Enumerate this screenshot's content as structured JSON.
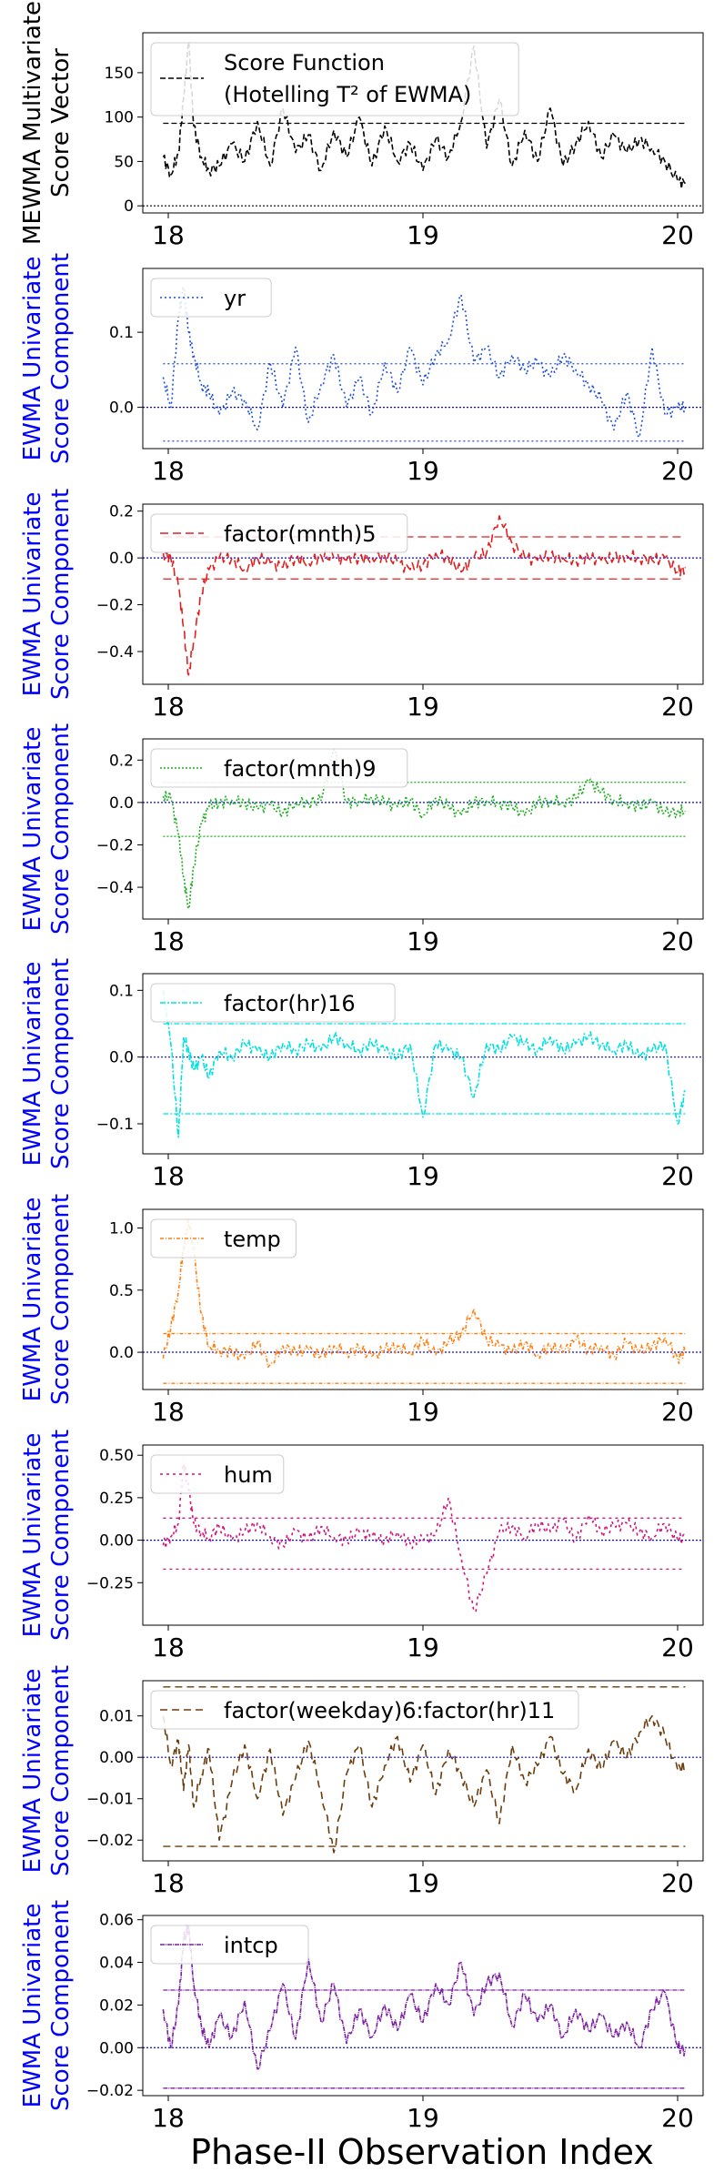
{
  "figure": {
    "xlabel": "Phase-II Observation Index"
  },
  "chart_data": [
    {
      "type": "line",
      "ylabel": [
        "MEWMA Multivariate",
        "Score Vector"
      ],
      "ylabel_color": "#000000",
      "legend": [
        "Score Function",
        "(Hotelling T² of EWMA)"
      ],
      "legend_placement": "top-left",
      "color": "#000000",
      "dash": "6,3",
      "ylim": [
        -8,
        195
      ],
      "yticks": [
        0,
        50,
        100,
        150
      ],
      "ytick_labels": [
        "0",
        "50",
        "100",
        "150"
      ],
      "xlim": [
        17.9,
        20.1
      ],
      "xticks": [
        18,
        19,
        20
      ],
      "xtick_labels": [
        "18",
        "19",
        "20"
      ],
      "limits": [
        93
      ],
      "center": 0,
      "center_color": "#000000",
      "x": [
        17.98,
        18.01,
        18.04,
        18.06,
        18.08,
        18.1,
        18.13,
        18.16,
        18.2,
        18.25,
        18.3,
        18.35,
        18.4,
        18.45,
        18.5,
        18.55,
        18.6,
        18.65,
        18.7,
        18.75,
        18.8,
        18.85,
        18.9,
        18.95,
        19.0,
        19.05,
        19.1,
        19.15,
        19.2,
        19.25,
        19.3,
        19.35,
        19.4,
        19.45,
        19.5,
        19.55,
        19.6,
        19.65,
        19.7,
        19.75,
        19.8,
        19.85,
        19.9,
        19.95,
        20.0,
        20.03
      ],
      "y": [
        55,
        35,
        60,
        120,
        185,
        90,
        55,
        40,
        45,
        70,
        50,
        95,
        45,
        110,
        60,
        80,
        40,
        85,
        55,
        100,
        45,
        90,
        50,
        70,
        40,
        75,
        55,
        95,
        180,
        65,
        120,
        45,
        85,
        50,
        110,
        45,
        70,
        95,
        55,
        80,
        60,
        75,
        65,
        50,
        28,
        25
      ]
    },
    {
      "type": "line",
      "ylabel": [
        "EWMA Univariate",
        "Score Component"
      ],
      "ylabel_color": "#0000ff",
      "legend": [
        "yr"
      ],
      "legend_placement": "top-left",
      "color": "#1f4fd8",
      "dash": "2,3",
      "ylim": [
        -0.055,
        0.185
      ],
      "yticks": [
        0.0,
        0.1
      ],
      "ytick_labels": [
        "0.0",
        "0.1"
      ],
      "xlim": [
        17.9,
        20.1
      ],
      "xticks": [
        18,
        19,
        20
      ],
      "xtick_labels": [
        "18",
        "19",
        "20"
      ],
      "limits": [
        0.058,
        -0.045
      ],
      "center": 0,
      "center_color": "#0000ff",
      "x": [
        17.98,
        18.01,
        18.04,
        18.06,
        18.08,
        18.1,
        18.13,
        18.16,
        18.2,
        18.25,
        18.3,
        18.35,
        18.4,
        18.45,
        18.5,
        18.55,
        18.6,
        18.65,
        18.7,
        18.75,
        18.8,
        18.85,
        18.9,
        18.95,
        19.0,
        19.05,
        19.1,
        19.15,
        19.2,
        19.25,
        19.3,
        19.35,
        19.4,
        19.45,
        19.5,
        19.55,
        19.6,
        19.65,
        19.7,
        19.75,
        19.8,
        19.85,
        19.9,
        19.95,
        20.0,
        20.03
      ],
      "y": [
        0.04,
        0.0,
        0.12,
        0.16,
        0.1,
        0.07,
        0.03,
        0.02,
        -0.01,
        0.02,
        0.01,
        -0.03,
        0.06,
        0.0,
        0.08,
        -0.02,
        0.03,
        0.07,
        0.0,
        0.04,
        -0.01,
        0.06,
        0.02,
        0.08,
        0.03,
        0.07,
        0.09,
        0.15,
        0.06,
        0.08,
        0.04,
        0.07,
        0.05,
        0.06,
        0.04,
        0.07,
        0.05,
        0.03,
        0.01,
        -0.03,
        0.02,
        -0.04,
        0.08,
        -0.01,
        0.0,
        0.0
      ]
    },
    {
      "type": "line",
      "ylabel": [
        "EWMA Univariate",
        "Score Component"
      ],
      "ylabel_color": "#0000ff",
      "legend": [
        "factor(mnth)5"
      ],
      "legend_placement": "top-left",
      "color": "#e02020",
      "dash": "9,5",
      "ylim": [
        -0.54,
        0.23
      ],
      "yticks": [
        -0.4,
        -0.2,
        0.0,
        0.2
      ],
      "ytick_labels": [
        "−0.4",
        "−0.2",
        "0.0",
        "0.2"
      ],
      "xlim": [
        17.9,
        20.1
      ],
      "xticks": [
        18,
        19,
        20
      ],
      "xtick_labels": [
        "18",
        "19",
        "20"
      ],
      "limits": [
        0.09,
        -0.09
      ],
      "center": 0,
      "center_color": "#0000ff",
      "x": [
        17.98,
        18.01,
        18.04,
        18.06,
        18.08,
        18.1,
        18.13,
        18.16,
        18.2,
        18.25,
        18.3,
        18.35,
        18.4,
        18.45,
        18.5,
        18.55,
        18.6,
        18.65,
        18.7,
        18.75,
        18.8,
        18.85,
        18.9,
        18.95,
        19.0,
        19.05,
        19.1,
        19.15,
        19.2,
        19.25,
        19.3,
        19.35,
        19.4,
        19.45,
        19.5,
        19.55,
        19.6,
        19.65,
        19.7,
        19.75,
        19.8,
        19.85,
        19.9,
        19.95,
        20.0,
        20.03
      ],
      "y": [
        0.02,
        0.0,
        -0.12,
        -0.3,
        -0.5,
        -0.35,
        -0.15,
        -0.05,
        0.0,
        0.0,
        -0.05,
        0.0,
        -0.02,
        -0.04,
        0.0,
        -0.02,
        0.01,
        0.0,
        -0.01,
        0.0,
        0.0,
        0.01,
        -0.02,
        -0.05,
        -0.03,
        0.02,
        0.0,
        -0.06,
        0.0,
        0.02,
        0.18,
        0.06,
        0.0,
        -0.01,
        0.01,
        0.0,
        -0.01,
        0.0,
        -0.01,
        0.0,
        0.01,
        0.0,
        -0.01,
        0.0,
        -0.06,
        -0.04
      ]
    },
    {
      "type": "line",
      "ylabel": [
        "EWMA Univariate",
        "Score Component"
      ],
      "ylabel_color": "#0000ff",
      "legend": [
        "factor(mnth)9"
      ],
      "legend_placement": "top-left",
      "color": "#1fae1f",
      "dash": "2,2",
      "ylim": [
        -0.55,
        0.3
      ],
      "yticks": [
        -0.4,
        -0.2,
        0.0,
        0.2
      ],
      "ytick_labels": [
        "−0.4",
        "−0.2",
        "0.0",
        "0.2"
      ],
      "xlim": [
        17.9,
        20.1
      ],
      "xticks": [
        18,
        19,
        20
      ],
      "xtick_labels": [
        "18",
        "19",
        "20"
      ],
      "limits": [
        0.095,
        -0.16
      ],
      "center": 0,
      "center_color": "#0000ff",
      "x": [
        17.98,
        18.01,
        18.04,
        18.06,
        18.08,
        18.1,
        18.13,
        18.16,
        18.2,
        18.25,
        18.3,
        18.35,
        18.4,
        18.45,
        18.5,
        18.55,
        18.6,
        18.65,
        18.7,
        18.75,
        18.8,
        18.85,
        18.9,
        18.95,
        19.0,
        19.05,
        19.1,
        19.15,
        19.2,
        19.25,
        19.3,
        19.35,
        19.4,
        19.45,
        19.5,
        19.55,
        19.6,
        19.65,
        19.7,
        19.75,
        19.8,
        19.85,
        19.9,
        19.95,
        20.0,
        20.03
      ],
      "y": [
        0.03,
        0.02,
        -0.15,
        -0.35,
        -0.5,
        -0.3,
        -0.1,
        -0.02,
        0.0,
        0.01,
        0.0,
        -0.03,
        -0.01,
        -0.05,
        0.0,
        0.0,
        0.01,
        0.25,
        0.0,
        0.01,
        0.02,
        0.0,
        -0.02,
        0.01,
        -0.06,
        0.02,
        -0.02,
        -0.06,
        0.0,
        0.01,
        0.0,
        -0.02,
        -0.06,
        0.0,
        0.01,
        0.0,
        0.02,
        0.1,
        0.05,
        0.01,
        0.0,
        -0.02,
        0.0,
        -0.05,
        -0.04,
        -0.04
      ]
    },
    {
      "type": "line",
      "ylabel": [
        "EWMA Univariate",
        "Score Component"
      ],
      "ylabel_color": "#0000ff",
      "legend": [
        "factor(hr)16"
      ],
      "legend_placement": "top-left",
      "color": "#00e0e0",
      "dash": "6,2,2,2",
      "ylim": [
        -0.145,
        0.125
      ],
      "yticks": [
        -0.1,
        0.0,
        0.1
      ],
      "ytick_labels": [
        "−0.1",
        "0.0",
        "0.1"
      ],
      "xlim": [
        17.9,
        20.1
      ],
      "xticks": [
        18,
        19,
        20
      ],
      "xtick_labels": [
        "18",
        "19",
        "20"
      ],
      "limits": [
        0.05,
        -0.085
      ],
      "center": 0,
      "center_color": "#0000ff",
      "x": [
        17.98,
        18.01,
        18.04,
        18.06,
        18.08,
        18.1,
        18.13,
        18.16,
        18.2,
        18.25,
        18.3,
        18.35,
        18.4,
        18.45,
        18.5,
        18.55,
        18.6,
        18.65,
        18.7,
        18.75,
        18.8,
        18.85,
        18.9,
        18.95,
        19.0,
        19.05,
        19.1,
        19.15,
        19.2,
        19.25,
        19.3,
        19.35,
        19.4,
        19.45,
        19.5,
        19.55,
        19.6,
        19.65,
        19.7,
        19.75,
        19.8,
        19.85,
        19.9,
        19.95,
        20.0,
        20.03
      ],
      "y": [
        0.1,
        0.02,
        -0.12,
        0.03,
        0.01,
        -0.02,
        0.0,
        -0.03,
        0.01,
        0.0,
        0.02,
        0.01,
        0.0,
        0.02,
        0.01,
        0.02,
        0.01,
        0.03,
        0.02,
        0.01,
        0.02,
        0.01,
        0.0,
        0.02,
        -0.09,
        0.02,
        0.01,
        0.0,
        -0.06,
        0.02,
        0.01,
        0.03,
        0.02,
        0.01,
        0.03,
        0.01,
        0.02,
        0.03,
        0.02,
        0.01,
        0.02,
        0.0,
        0.01,
        0.02,
        -0.1,
        -0.05
      ]
    },
    {
      "type": "line",
      "ylabel": [
        "EWMA Univariate",
        "Score Component"
      ],
      "ylabel_color": "#0000ff",
      "legend": [
        "temp"
      ],
      "legend_placement": "top-left",
      "color": "#ff7f0e",
      "dash": "4,2,1,2",
      "ylim": [
        -0.3,
        1.15
      ],
      "yticks": [
        0.0,
        0.5,
        1.0
      ],
      "ytick_labels": [
        "0.0",
        "0.5",
        "1.0"
      ],
      "xlim": [
        17.9,
        20.1
      ],
      "xticks": [
        18,
        19,
        20
      ],
      "xtick_labels": [
        "18",
        "19",
        "20"
      ],
      "limits": [
        0.15,
        -0.25
      ],
      "center": 0,
      "center_color": "#0000ff",
      "x": [
        17.98,
        18.01,
        18.04,
        18.06,
        18.08,
        18.1,
        18.13,
        18.16,
        18.2,
        18.25,
        18.3,
        18.35,
        18.4,
        18.45,
        18.5,
        18.55,
        18.6,
        18.65,
        18.7,
        18.75,
        18.8,
        18.85,
        18.9,
        18.95,
        19.0,
        19.05,
        19.1,
        19.15,
        19.2,
        19.25,
        19.3,
        19.35,
        19.4,
        19.45,
        19.5,
        19.55,
        19.6,
        19.65,
        19.7,
        19.75,
        19.8,
        19.85,
        19.9,
        19.95,
        20.0,
        20.03
      ],
      "y": [
        -0.05,
        0.2,
        0.5,
        0.85,
        1.05,
        0.8,
        0.3,
        0.05,
        0.02,
        0.0,
        -0.05,
        0.08,
        -0.1,
        0.05,
        0.0,
        0.02,
        -0.03,
        0.05,
        0.0,
        0.03,
        -0.04,
        0.02,
        0.05,
        0.0,
        0.1,
        -0.02,
        0.08,
        0.15,
        0.35,
        0.1,
        0.05,
        0.0,
        0.08,
        -0.02,
        0.05,
        0.0,
        0.1,
        0.02,
        0.05,
        -0.03,
        0.08,
        0.0,
        0.05,
        0.12,
        -0.05,
        0.0
      ]
    },
    {
      "type": "line",
      "ylabel": [
        "EWMA Univariate",
        "Score Component"
      ],
      "ylabel_color": "#0000ff",
      "legend": [
        "hum"
      ],
      "legend_placement": "top-left",
      "color": "#d0157c",
      "dash": "3,4",
      "ylim": [
        -0.5,
        0.56
      ],
      "yticks": [
        -0.25,
        0.0,
        0.25,
        0.5
      ],
      "ytick_labels": [
        "−0.25",
        "0.00",
        "0.25",
        "0.50"
      ],
      "xlim": [
        17.9,
        20.1
      ],
      "xticks": [
        18,
        19,
        20
      ],
      "xtick_labels": [
        "18",
        "19",
        "20"
      ],
      "limits": [
        0.13,
        -0.17
      ],
      "center": 0,
      "center_color": "#0000ff",
      "x": [
        17.98,
        18.01,
        18.04,
        18.06,
        18.08,
        18.1,
        18.13,
        18.16,
        18.2,
        18.25,
        18.3,
        18.35,
        18.4,
        18.45,
        18.5,
        18.55,
        18.6,
        18.65,
        18.7,
        18.75,
        18.8,
        18.85,
        18.9,
        18.95,
        19.0,
        19.05,
        19.1,
        19.15,
        19.2,
        19.25,
        19.3,
        19.35,
        19.4,
        19.45,
        19.5,
        19.55,
        19.6,
        19.65,
        19.7,
        19.75,
        19.8,
        19.85,
        19.9,
        19.95,
        20.0,
        20.03
      ],
      "y": [
        -0.03,
        0.02,
        0.1,
        0.45,
        0.3,
        0.1,
        0.05,
        0.02,
        0.08,
        0.0,
        0.05,
        0.1,
        0.02,
        -0.03,
        0.05,
        0.0,
        0.08,
        0.02,
        0.0,
        0.05,
        0.02,
        0.0,
        0.05,
        -0.02,
        0.0,
        0.03,
        0.25,
        -0.1,
        -0.42,
        -0.2,
        0.05,
        0.08,
        0.02,
        0.1,
        0.05,
        0.12,
        0.0,
        0.15,
        0.05,
        0.08,
        0.1,
        0.05,
        0.02,
        0.1,
        0.0,
        0.02
      ]
    },
    {
      "type": "line",
      "ylabel": [
        "EWMA Univariate",
        "Score Component"
      ],
      "ylabel_color": "#0000ff",
      "legend": [
        "factor(weekday)6:factor(hr)11"
      ],
      "legend_placement": "top-left",
      "color": "#6b3d0c",
      "dash": "8,5",
      "ylim": [
        -0.025,
        0.0185
      ],
      "yticks": [
        -0.02,
        -0.01,
        0.0,
        0.01
      ],
      "ytick_labels": [
        "−0.02",
        "−0.01",
        "0.00",
        "0.01"
      ],
      "xlim": [
        17.9,
        20.1
      ],
      "xticks": [
        18,
        19,
        20
      ],
      "xtick_labels": [
        "18",
        "19",
        "20"
      ],
      "limits": [
        0.017,
        -0.0215
      ],
      "center": 0,
      "center_color": "#0000ff",
      "x": [
        17.98,
        18.01,
        18.04,
        18.06,
        18.08,
        18.1,
        18.13,
        18.16,
        18.2,
        18.25,
        18.3,
        18.35,
        18.4,
        18.45,
        18.5,
        18.55,
        18.6,
        18.65,
        18.7,
        18.75,
        18.8,
        18.85,
        18.9,
        18.95,
        19.0,
        19.05,
        19.1,
        19.15,
        19.2,
        19.25,
        19.3,
        19.35,
        19.4,
        19.45,
        19.5,
        19.55,
        19.6,
        19.65,
        19.7,
        19.75,
        19.8,
        19.85,
        19.9,
        19.95,
        20.0,
        20.03
      ],
      "y": [
        0.01,
        -0.002,
        0.004,
        -0.008,
        0.003,
        -0.012,
        -0.004,
        0.002,
        -0.02,
        -0.006,
        0.003,
        -0.01,
        0.002,
        -0.014,
        -0.005,
        0.004,
        -0.008,
        -0.023,
        -0.004,
        0.003,
        -0.012,
        -0.002,
        0.005,
        -0.006,
        0.003,
        -0.009,
        0.002,
        -0.004,
        -0.012,
        -0.003,
        -0.016,
        0.003,
        -0.006,
        -0.002,
        0.005,
        -0.004,
        -0.008,
        0.002,
        -0.003,
        0.004,
        0.0,
        0.006,
        0.01,
        0.005,
        -0.003,
        -0.002
      ]
    },
    {
      "type": "line",
      "ylabel": [
        "EWMA Univariate",
        "Score Component"
      ],
      "ylabel_color": "#0000ff",
      "legend": [
        "intcp"
      ],
      "legend_placement": "top-left",
      "color": "#7b1fa2",
      "dash": "5,1,1,1",
      "ylim": [
        -0.0225,
        0.062
      ],
      "yticks": [
        -0.02,
        0.0,
        0.02,
        0.04,
        0.06
      ],
      "ytick_labels": [
        "−0.02",
        "0.00",
        "0.02",
        "0.04",
        "0.06"
      ],
      "xlim": [
        17.9,
        20.1
      ],
      "xticks": [
        18,
        19,
        20
      ],
      "xtick_labels": [
        "18",
        "19",
        "20"
      ],
      "limits": [
        0.027,
        -0.019
      ],
      "center": 0,
      "center_color": "#0000ff",
      "x": [
        17.98,
        18.01,
        18.04,
        18.06,
        18.08,
        18.1,
        18.13,
        18.16,
        18.2,
        18.25,
        18.3,
        18.35,
        18.4,
        18.45,
        18.5,
        18.55,
        18.6,
        18.65,
        18.7,
        18.75,
        18.8,
        18.85,
        18.9,
        18.95,
        19.0,
        19.05,
        19.1,
        19.15,
        19.2,
        19.25,
        19.3,
        19.35,
        19.4,
        19.45,
        19.5,
        19.55,
        19.6,
        19.65,
        19.7,
        19.75,
        19.8,
        19.85,
        19.9,
        19.95,
        20.0,
        20.03
      ],
      "y": [
        0.018,
        0.0,
        0.02,
        0.05,
        0.057,
        0.03,
        0.01,
        0.0,
        0.015,
        0.005,
        0.022,
        -0.01,
        0.008,
        0.03,
        0.004,
        0.042,
        0.012,
        0.03,
        0.002,
        0.018,
        0.005,
        0.02,
        0.008,
        0.025,
        0.012,
        0.03,
        0.02,
        0.04,
        0.015,
        0.03,
        0.035,
        0.01,
        0.025,
        0.012,
        0.02,
        0.005,
        0.018,
        0.008,
        0.015,
        0.005,
        0.012,
        0.0,
        0.018,
        0.026,
        0.0,
        -0.001
      ]
    }
  ]
}
